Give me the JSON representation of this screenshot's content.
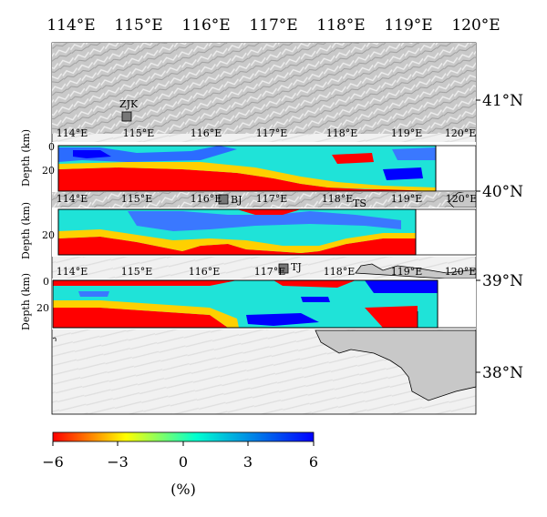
{
  "map": {
    "top_lon_labels": [
      "114°E",
      "115°E",
      "116°E",
      "117°E",
      "118°E",
      "119°E",
      "120°E"
    ],
    "lat_labels": [
      "41°N",
      "40°N",
      "39°N",
      "38°N"
    ],
    "stations": [
      {
        "code": "ZJK"
      },
      {
        "code": "BJ"
      },
      {
        "code": "TS"
      },
      {
        "code": "TJ"
      }
    ]
  },
  "sections": [
    {
      "lon_labels": [
        "114°E",
        "115°E",
        "116°E",
        "117°E",
        "118°E",
        "119°E",
        "120°E"
      ],
      "depth_axis": {
        "label": "Depth (km)",
        "ticks": [
          "0",
          "20"
        ]
      }
    },
    {
      "lon_labels": [
        "114°E",
        "115°E",
        "116°E",
        "117°E",
        "118°E",
        "119°E",
        "120°E"
      ],
      "depth_axis": {
        "label": "Depth (km)",
        "ticks": [
          "20"
        ]
      }
    },
    {
      "lon_labels": [
        "114°E",
        "115°E",
        "116°E",
        "117°E",
        "118°E",
        "119°E",
        "120°E"
      ],
      "depth_axis": {
        "label": "Depth (km)",
        "ticks": [
          "0",
          "20"
        ]
      }
    }
  ],
  "colorbar": {
    "ticks": [
      "−6",
      "−3",
      "0",
      "3",
      "6"
    ],
    "unit": "(%)",
    "colors": [
      "#ff0000",
      "#ffff00",
      "#00ffd0",
      "#0000ff"
    ]
  }
}
